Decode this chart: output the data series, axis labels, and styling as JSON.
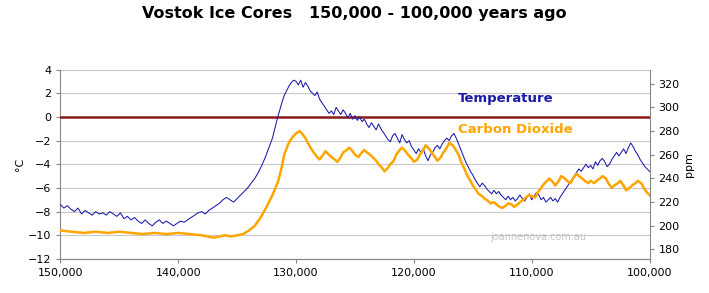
{
  "title": "Vostok Ice Cores   150,000 - 100,000 years ago",
  "ylabel_left": "°C",
  "ylabel_right": "ppm",
  "xlim": [
    150000,
    100000
  ],
  "ylim_left": [
    -12,
    4
  ],
  "ylim_right": [
    172,
    332
  ],
  "yticks_left": [
    -12,
    -10,
    -8,
    -6,
    -4,
    -2,
    0,
    2,
    4
  ],
  "yticks_right": [
    180,
    200,
    220,
    240,
    260,
    280,
    300,
    320
  ],
  "xticks": [
    150000,
    140000,
    130000,
    120000,
    110000,
    100000
  ],
  "zero_line_color": "#8B1A1A",
  "temp_color": "#1a1aaa",
  "co2_color": "#FFA500",
  "background_color": "#FFFFFF",
  "grid_color": "#C8C8C8",
  "watermark": "joannenova.com.au",
  "temp_data": [
    [
      150000,
      -7.4
    ],
    [
      149700,
      -7.7
    ],
    [
      149400,
      -7.5
    ],
    [
      149100,
      -7.8
    ],
    [
      148800,
      -8.0
    ],
    [
      148500,
      -7.7
    ],
    [
      148200,
      -8.2
    ],
    [
      147900,
      -7.9
    ],
    [
      147600,
      -8.1
    ],
    [
      147300,
      -8.3
    ],
    [
      147000,
      -8.0
    ],
    [
      146700,
      -8.2
    ],
    [
      146400,
      -8.1
    ],
    [
      146100,
      -8.3
    ],
    [
      145800,
      -8.0
    ],
    [
      145500,
      -8.2
    ],
    [
      145200,
      -8.4
    ],
    [
      144900,
      -8.1
    ],
    [
      144600,
      -8.6
    ],
    [
      144300,
      -8.4
    ],
    [
      144000,
      -8.7
    ],
    [
      143700,
      -8.5
    ],
    [
      143400,
      -8.8
    ],
    [
      143100,
      -9.0
    ],
    [
      142800,
      -8.7
    ],
    [
      142500,
      -9.0
    ],
    [
      142200,
      -9.2
    ],
    [
      141900,
      -8.9
    ],
    [
      141600,
      -8.7
    ],
    [
      141300,
      -9.0
    ],
    [
      141000,
      -8.8
    ],
    [
      140700,
      -9.0
    ],
    [
      140400,
      -9.2
    ],
    [
      140100,
      -9.0
    ],
    [
      139800,
      -8.8
    ],
    [
      139500,
      -8.9
    ],
    [
      139200,
      -8.7
    ],
    [
      138900,
      -8.5
    ],
    [
      138600,
      -8.3
    ],
    [
      138300,
      -8.1
    ],
    [
      138000,
      -8.0
    ],
    [
      137700,
      -8.2
    ],
    [
      137400,
      -7.9
    ],
    [
      137100,
      -7.7
    ],
    [
      136800,
      -7.5
    ],
    [
      136500,
      -7.3
    ],
    [
      136200,
      -7.0
    ],
    [
      135900,
      -6.8
    ],
    [
      135600,
      -7.0
    ],
    [
      135300,
      -7.2
    ],
    [
      135000,
      -6.9
    ],
    [
      134700,
      -6.6
    ],
    [
      134400,
      -6.3
    ],
    [
      134100,
      -6.0
    ],
    [
      133800,
      -5.6
    ],
    [
      133500,
      -5.2
    ],
    [
      133200,
      -4.7
    ],
    [
      132900,
      -4.1
    ],
    [
      132600,
      -3.4
    ],
    [
      132300,
      -2.6
    ],
    [
      132000,
      -1.8
    ],
    [
      131800,
      -1.0
    ],
    [
      131600,
      -0.2
    ],
    [
      131400,
      0.5
    ],
    [
      131200,
      1.2
    ],
    [
      131000,
      1.8
    ],
    [
      130800,
      2.2
    ],
    [
      130600,
      2.6
    ],
    [
      130400,
      2.9
    ],
    [
      130200,
      3.1
    ],
    [
      130000,
      3.0
    ],
    [
      129800,
      2.7
    ],
    [
      129600,
      3.1
    ],
    [
      129400,
      2.5
    ],
    [
      129200,
      2.9
    ],
    [
      129000,
      2.6
    ],
    [
      128800,
      2.2
    ],
    [
      128600,
      2.0
    ],
    [
      128400,
      1.8
    ],
    [
      128200,
      2.1
    ],
    [
      128000,
      1.5
    ],
    [
      127800,
      1.2
    ],
    [
      127600,
      0.9
    ],
    [
      127400,
      0.6
    ],
    [
      127200,
      0.3
    ],
    [
      127000,
      0.5
    ],
    [
      126800,
      0.2
    ],
    [
      126600,
      0.8
    ],
    [
      126400,
      0.5
    ],
    [
      126200,
      0.2
    ],
    [
      126000,
      0.6
    ],
    [
      125800,
      0.3
    ],
    [
      125600,
      -0.1
    ],
    [
      125400,
      0.3
    ],
    [
      125200,
      -0.2
    ],
    [
      125000,
      0.1
    ],
    [
      124800,
      -0.3
    ],
    [
      124600,
      0.0
    ],
    [
      124400,
      -0.4
    ],
    [
      124200,
      -0.2
    ],
    [
      124000,
      -0.6
    ],
    [
      123800,
      -0.9
    ],
    [
      123600,
      -0.5
    ],
    [
      123400,
      -0.8
    ],
    [
      123200,
      -1.1
    ],
    [
      123000,
      -0.6
    ],
    [
      122800,
      -1.0
    ],
    [
      122600,
      -1.3
    ],
    [
      122400,
      -1.6
    ],
    [
      122200,
      -1.9
    ],
    [
      122000,
      -2.1
    ],
    [
      121800,
      -1.6
    ],
    [
      121600,
      -1.4
    ],
    [
      121400,
      -1.8
    ],
    [
      121200,
      -2.2
    ],
    [
      121000,
      -1.5
    ],
    [
      120800,
      -1.9
    ],
    [
      120600,
      -2.2
    ],
    [
      120400,
      -2.0
    ],
    [
      120200,
      -2.5
    ],
    [
      120000,
      -2.8
    ],
    [
      119800,
      -3.1
    ],
    [
      119600,
      -2.7
    ],
    [
      119400,
      -3.0
    ],
    [
      119200,
      -2.7
    ],
    [
      119000,
      -3.3
    ],
    [
      118800,
      -3.7
    ],
    [
      118600,
      -3.2
    ],
    [
      118400,
      -3.0
    ],
    [
      118200,
      -2.6
    ],
    [
      118000,
      -2.4
    ],
    [
      117800,
      -2.7
    ],
    [
      117600,
      -2.3
    ],
    [
      117400,
      -2.0
    ],
    [
      117200,
      -1.8
    ],
    [
      117000,
      -2.0
    ],
    [
      116800,
      -1.6
    ],
    [
      116600,
      -1.4
    ],
    [
      116400,
      -1.8
    ],
    [
      116200,
      -2.3
    ],
    [
      116000,
      -2.8
    ],
    [
      115800,
      -3.3
    ],
    [
      115600,
      -3.8
    ],
    [
      115400,
      -4.2
    ],
    [
      115200,
      -4.6
    ],
    [
      115000,
      -4.9
    ],
    [
      114800,
      -5.3
    ],
    [
      114600,
      -5.6
    ],
    [
      114400,
      -5.9
    ],
    [
      114200,
      -5.6
    ],
    [
      114000,
      -5.8
    ],
    [
      113800,
      -6.1
    ],
    [
      113600,
      -6.3
    ],
    [
      113400,
      -6.5
    ],
    [
      113200,
      -6.2
    ],
    [
      113000,
      -6.5
    ],
    [
      112800,
      -6.3
    ],
    [
      112600,
      -6.6
    ],
    [
      112400,
      -6.8
    ],
    [
      112200,
      -7.0
    ],
    [
      112000,
      -6.7
    ],
    [
      111800,
      -7.0
    ],
    [
      111600,
      -6.8
    ],
    [
      111400,
      -7.1
    ],
    [
      111200,
      -6.9
    ],
    [
      111000,
      -6.6
    ],
    [
      110800,
      -6.9
    ],
    [
      110600,
      -7.1
    ],
    [
      110400,
      -6.8
    ],
    [
      110200,
      -6.5
    ],
    [
      110000,
      -7.0
    ],
    [
      109800,
      -6.7
    ],
    [
      109600,
      -6.4
    ],
    [
      109400,
      -6.6
    ],
    [
      109200,
      -7.0
    ],
    [
      109000,
      -6.8
    ],
    [
      108800,
      -7.2
    ],
    [
      108600,
      -7.0
    ],
    [
      108400,
      -6.8
    ],
    [
      108200,
      -7.1
    ],
    [
      108000,
      -6.9
    ],
    [
      107800,
      -7.2
    ],
    [
      107600,
      -6.8
    ],
    [
      107400,
      -6.5
    ],
    [
      107200,
      -6.2
    ],
    [
      107000,
      -5.9
    ],
    [
      106800,
      -5.6
    ],
    [
      106600,
      -5.3
    ],
    [
      106400,
      -5.0
    ],
    [
      106200,
      -4.7
    ],
    [
      106000,
      -4.4
    ],
    [
      105800,
      -4.6
    ],
    [
      105600,
      -4.3
    ],
    [
      105400,
      -4.0
    ],
    [
      105200,
      -4.3
    ],
    [
      105000,
      -4.1
    ],
    [
      104800,
      -4.4
    ],
    [
      104600,
      -3.8
    ],
    [
      104400,
      -4.1
    ],
    [
      104200,
      -3.7
    ],
    [
      104000,
      -3.5
    ],
    [
      103800,
      -3.8
    ],
    [
      103600,
      -4.2
    ],
    [
      103400,
      -4.0
    ],
    [
      103200,
      -3.6
    ],
    [
      103000,
      -3.3
    ],
    [
      102800,
      -3.0
    ],
    [
      102600,
      -3.3
    ],
    [
      102400,
      -3.0
    ],
    [
      102200,
      -2.7
    ],
    [
      102000,
      -3.1
    ],
    [
      101800,
      -2.6
    ],
    [
      101600,
      -2.2
    ],
    [
      101400,
      -2.5
    ],
    [
      101200,
      -2.9
    ],
    [
      101000,
      -3.2
    ],
    [
      100800,
      -3.6
    ],
    [
      100600,
      -3.9
    ],
    [
      100400,
      -4.2
    ],
    [
      100200,
      -4.4
    ],
    [
      100000,
      -4.6
    ]
  ],
  "co2_data": [
    [
      150000,
      196
    ],
    [
      149000,
      195
    ],
    [
      148000,
      194
    ],
    [
      147000,
      195
    ],
    [
      146000,
      194
    ],
    [
      145000,
      195
    ],
    [
      144000,
      194
    ],
    [
      143000,
      193
    ],
    [
      142000,
      194
    ],
    [
      141000,
      193
    ],
    [
      140000,
      194
    ],
    [
      139000,
      193
    ],
    [
      138000,
      192
    ],
    [
      137500,
      191
    ],
    [
      137000,
      190
    ],
    [
      136500,
      191
    ],
    [
      136000,
      192
    ],
    [
      135500,
      191
    ],
    [
      135000,
      192
    ],
    [
      134500,
      193
    ],
    [
      134000,
      196
    ],
    [
      133500,
      200
    ],
    [
      133000,
      207
    ],
    [
      132500,
      216
    ],
    [
      132000,
      226
    ],
    [
      131500,
      238
    ],
    [
      131200,
      250
    ],
    [
      131000,
      260
    ],
    [
      130700,
      268
    ],
    [
      130500,
      272
    ],
    [
      130200,
      276
    ],
    [
      130000,
      278
    ],
    [
      129700,
      280
    ],
    [
      129500,
      278
    ],
    [
      129200,
      274
    ],
    [
      129000,
      270
    ],
    [
      128700,
      265
    ],
    [
      128500,
      262
    ],
    [
      128200,
      258
    ],
    [
      128000,
      256
    ],
    [
      127700,
      260
    ],
    [
      127500,
      263
    ],
    [
      127200,
      260
    ],
    [
      127000,
      258
    ],
    [
      126700,
      256
    ],
    [
      126500,
      254
    ],
    [
      126200,
      258
    ],
    [
      126000,
      262
    ],
    [
      125700,
      264
    ],
    [
      125500,
      266
    ],
    [
      125200,
      263
    ],
    [
      125000,
      260
    ],
    [
      124700,
      258
    ],
    [
      124500,
      261
    ],
    [
      124200,
      264
    ],
    [
      124000,
      262
    ],
    [
      123700,
      260
    ],
    [
      123500,
      258
    ],
    [
      123200,
      255
    ],
    [
      123000,
      252
    ],
    [
      122700,
      249
    ],
    [
      122500,
      246
    ],
    [
      122200,
      249
    ],
    [
      122000,
      252
    ],
    [
      121700,
      255
    ],
    [
      121500,
      260
    ],
    [
      121200,
      264
    ],
    [
      121000,
      266
    ],
    [
      120700,
      263
    ],
    [
      120500,
      260
    ],
    [
      120200,
      257
    ],
    [
      120000,
      254
    ],
    [
      119700,
      256
    ],
    [
      119500,
      260
    ],
    [
      119200,
      264
    ],
    [
      119000,
      268
    ],
    [
      118700,
      265
    ],
    [
      118500,
      262
    ],
    [
      118200,
      258
    ],
    [
      118000,
      255
    ],
    [
      117700,
      258
    ],
    [
      117500,
      262
    ],
    [
      117200,
      266
    ],
    [
      117000,
      270
    ],
    [
      116700,
      268
    ],
    [
      116500,
      265
    ],
    [
      116200,
      260
    ],
    [
      116000,
      254
    ],
    [
      115700,
      248
    ],
    [
      115500,
      243
    ],
    [
      115200,
      238
    ],
    [
      115000,
      234
    ],
    [
      114700,
      230
    ],
    [
      114500,
      227
    ],
    [
      114200,
      225
    ],
    [
      114000,
      223
    ],
    [
      113700,
      221
    ],
    [
      113500,
      219
    ],
    [
      113200,
      220
    ],
    [
      113000,
      218
    ],
    [
      112700,
      216
    ],
    [
      112500,
      215
    ],
    [
      112200,
      217
    ],
    [
      112000,
      219
    ],
    [
      111700,
      218
    ],
    [
      111500,
      216
    ],
    [
      111200,
      218
    ],
    [
      111000,
      220
    ],
    [
      110700,
      222
    ],
    [
      110500,
      224
    ],
    [
      110200,
      226
    ],
    [
      110000,
      225
    ],
    [
      109700,
      224
    ],
    [
      109500,
      228
    ],
    [
      109200,
      232
    ],
    [
      109000,
      235
    ],
    [
      108700,
      238
    ],
    [
      108500,
      240
    ],
    [
      108200,
      237
    ],
    [
      108000,
      234
    ],
    [
      107700,
      238
    ],
    [
      107500,
      242
    ],
    [
      107200,
      240
    ],
    [
      107000,
      238
    ],
    [
      106700,
      236
    ],
    [
      106500,
      240
    ],
    [
      106200,
      244
    ],
    [
      106000,
      242
    ],
    [
      105700,
      240
    ],
    [
      105500,
      238
    ],
    [
      105200,
      236
    ],
    [
      105000,
      238
    ],
    [
      104700,
      236
    ],
    [
      104500,
      238
    ],
    [
      104200,
      240
    ],
    [
      104000,
      242
    ],
    [
      103700,
      240
    ],
    [
      103500,
      236
    ],
    [
      103200,
      232
    ],
    [
      103000,
      234
    ],
    [
      102700,
      236
    ],
    [
      102500,
      238
    ],
    [
      102200,
      234
    ],
    [
      102000,
      230
    ],
    [
      101700,
      232
    ],
    [
      101500,
      234
    ],
    [
      101200,
      236
    ],
    [
      101000,
      238
    ],
    [
      100700,
      236
    ],
    [
      100500,
      232
    ],
    [
      100200,
      228
    ],
    [
      100000,
      226
    ]
  ]
}
